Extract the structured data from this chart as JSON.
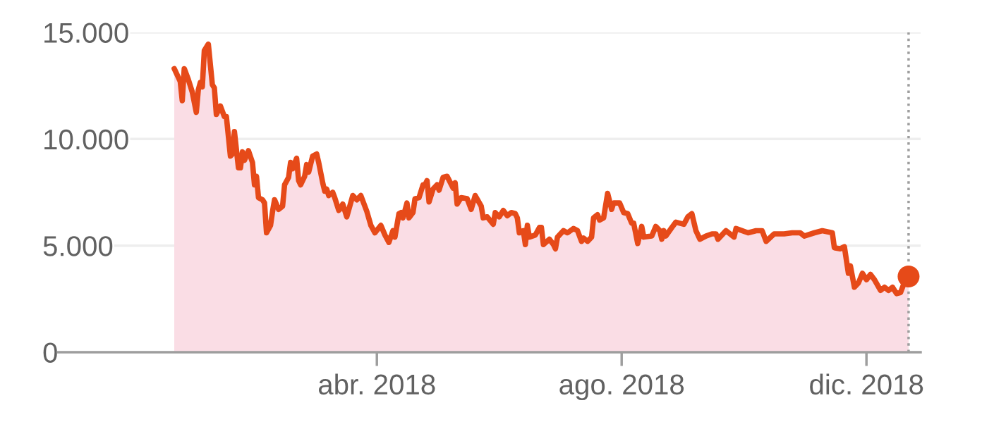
{
  "chart_data": {
    "type": "area",
    "xlim": [
      "2017-10-24",
      "2018-12-28"
    ],
    "xticks": [
      {
        "value": "2018-04-01",
        "label": "abr. 2018"
      },
      {
        "value": "2018-08-01",
        "label": "ago. 2018"
      },
      {
        "value": "2018-12-01",
        "label": "dic. 2018"
      }
    ],
    "ylim": [
      0,
      15000
    ],
    "yticks": [
      0,
      {
        "value": 5000,
        "label": "5.000"
      },
      {
        "value": 10000,
        "label": "10.000"
      },
      {
        "value": 15000,
        "label": "15.000"
      }
    ],
    "grid": "y",
    "ref_lines": [
      {
        "axis": "x",
        "value": "2018-12-22",
        "label": null,
        "color": "#9e9e9e",
        "line_style": "dotted"
      }
    ],
    "series": [
      {
        "color": "#e64a19",
        "x": [
          "2017-12-21",
          "2017-12-24",
          "2017-12-25",
          "2017-12-26",
          "2017-12-28",
          "2017-12-30",
          "2018-01-01",
          "2018-01-02",
          "2018-01-03",
          "2018-01-04",
          "2018-01-05",
          "2018-01-07",
          "2018-01-09",
          "2018-01-10",
          "2018-01-11",
          "2018-01-13",
          "2018-01-15",
          "2018-01-16",
          "2018-01-18",
          "2018-01-19",
          "2018-01-20",
          "2018-01-22",
          "2018-01-23",
          "2018-01-24",
          "2018-01-25",
          "2018-01-27",
          "2018-01-29",
          "2018-01-30",
          "2018-01-31",
          "2018-02-01",
          "2018-02-03",
          "2018-02-04",
          "2018-02-05",
          "2018-02-07",
          "2018-02-08",
          "2018-02-09",
          "2018-02-11",
          "2018-02-13",
          "2018-02-14",
          "2018-02-16",
          "2018-02-17",
          "2018-02-18",
          "2018-02-20",
          "2018-02-21",
          "2018-02-22",
          "2018-02-24",
          "2018-02-25",
          "2018-02-26",
          "2018-02-28",
          "2018-03-02",
          "2018-03-03",
          "2018-03-05",
          "2018-03-06",
          "2018-03-07",
          "2018-03-08",
          "2018-03-10",
          "2018-03-11",
          "2018-03-13",
          "2018-03-14",
          "2018-03-15",
          "2018-03-17",
          "2018-03-20",
          "2018-03-22",
          "2018-03-24",
          "2018-03-27",
          "2018-03-29",
          "2018-03-31",
          "2018-04-03",
          "2018-04-05",
          "2018-04-07",
          "2018-04-09",
          "2018-04-10",
          "2018-04-12",
          "2018-04-13",
          "2018-04-14",
          "2018-04-16",
          "2018-04-17",
          "2018-04-19",
          "2018-04-20",
          "2018-04-22",
          "2018-04-24",
          "2018-04-25",
          "2018-04-26",
          "2018-04-27",
          "2018-04-29",
          "2018-05-01",
          "2018-05-02",
          "2018-05-04",
          "2018-05-06",
          "2018-05-09",
          "2018-05-10",
          "2018-05-11",
          "2018-05-13",
          "2018-05-16",
          "2018-05-18",
          "2018-05-20",
          "2018-05-23",
          "2018-05-24",
          "2018-05-26",
          "2018-05-29",
          "2018-05-30",
          "2018-06-01",
          "2018-06-03",
          "2018-06-05",
          "2018-06-07",
          "2018-06-09",
          "2018-06-10",
          "2018-06-11",
          "2018-06-13",
          "2018-06-14",
          "2018-06-15",
          "2018-06-16",
          "2018-06-19",
          "2018-06-21",
          "2018-06-22",
          "2018-06-23",
          "2018-06-26",
          "2018-06-28",
          "2018-06-29",
          "2018-06-30",
          "2018-07-03",
          "2018-07-05",
          "2018-07-08",
          "2018-07-10",
          "2018-07-12",
          "2018-07-13",
          "2018-07-15",
          "2018-07-17",
          "2018-07-18",
          "2018-07-20",
          "2018-07-21",
          "2018-07-23",
          "2018-07-25",
          "2018-07-27",
          "2018-07-28",
          "2018-07-31",
          "2018-08-02",
          "2018-08-04",
          "2018-08-06",
          "2018-08-07",
          "2018-08-09",
          "2018-08-11",
          "2018-08-12",
          "2018-08-16",
          "2018-08-18",
          "2018-08-20",
          "2018-08-21",
          "2018-08-22",
          "2018-08-23",
          "2018-08-26",
          "2018-08-28",
          "2018-09-01",
          "2018-09-03",
          "2018-09-05",
          "2018-09-07",
          "2018-09-09",
          "2018-09-12",
          "2018-09-15",
          "2018-09-17",
          "2018-09-18",
          "2018-09-22",
          "2018-09-26",
          "2018-09-27",
          "2018-10-03",
          "2018-10-07",
          "2018-10-10",
          "2018-10-12",
          "2018-10-16",
          "2018-10-21",
          "2018-10-25",
          "2018-10-29",
          "2018-10-31",
          "2018-11-05",
          "2018-11-09",
          "2018-11-14",
          "2018-11-15",
          "2018-11-18",
          "2018-11-20",
          "2018-11-22",
          "2018-11-23",
          "2018-11-25",
          "2018-11-27",
          "2018-11-29",
          "2018-12-01",
          "2018-12-03",
          "2018-12-05",
          "2018-12-08",
          "2018-12-10",
          "2018-12-12",
          "2018-12-14",
          "2018-12-16",
          "2018-12-18",
          "2018-12-20",
          "2018-12-22"
        ],
        "values": [
          13300,
          12700,
          11800,
          13300,
          12800,
          12200,
          11250,
          12300,
          12650,
          12450,
          14150,
          14450,
          12550,
          12400,
          11150,
          11550,
          11050,
          11050,
          9200,
          9300,
          10350,
          8650,
          8650,
          9400,
          9000,
          9450,
          8900,
          7850,
          8250,
          7250,
          7150,
          7000,
          5600,
          5950,
          6600,
          7150,
          6700,
          6850,
          7850,
          8200,
          8900,
          8600,
          9100,
          8050,
          7850,
          8250,
          8800,
          8450,
          9200,
          9300,
          8900,
          7950,
          7550,
          7650,
          7350,
          7500,
          7250,
          6650,
          6750,
          6950,
          6350,
          7350,
          7150,
          7350,
          6600,
          5950,
          5600,
          5950,
          5500,
          5150,
          5700,
          5400,
          6500,
          6550,
          6300,
          7000,
          6300,
          6550,
          7200,
          7250,
          7850,
          7850,
          8050,
          7050,
          7650,
          7850,
          7600,
          8200,
          8250,
          7700,
          7950,
          6950,
          7250,
          7200,
          6700,
          7350,
          6850,
          6300,
          6350,
          6000,
          6550,
          6350,
          6650,
          6400,
          6550,
          6500,
          6300,
          5600,
          5700,
          5050,
          5950,
          5400,
          5500,
          5850,
          5850,
          5050,
          5300,
          5050,
          4850,
          5400,
          5700,
          5600,
          5800,
          5700,
          5200,
          5350,
          5200,
          5400,
          6300,
          6450,
          6200,
          6300,
          7450,
          6700,
          7000,
          7000,
          6550,
          6500,
          6050,
          6050,
          5100,
          5900,
          5400,
          5450,
          5900,
          5700,
          5300,
          5700,
          5450,
          5850,
          6100,
          6000,
          6350,
          6500,
          5700,
          5300,
          5450,
          5550,
          5550,
          5300,
          5700,
          5400,
          5800,
          5600,
          5700,
          5700,
          5200,
          5550,
          5550,
          5600,
          5600,
          5450,
          5600,
          5700,
          5600,
          4900,
          4850,
          4950,
          3700,
          4050,
          3050,
          3250,
          3700,
          3400,
          3650,
          3400,
          2900,
          3050,
          2900,
          3050,
          2750,
          2800,
          3300,
          3550
        ]
      },
      {
        "type": "scatter",
        "marker": "circle",
        "color": "#e64a19",
        "x": [
          "2018-12-22"
        ],
        "values": [
          3550
        ]
      }
    ]
  }
}
